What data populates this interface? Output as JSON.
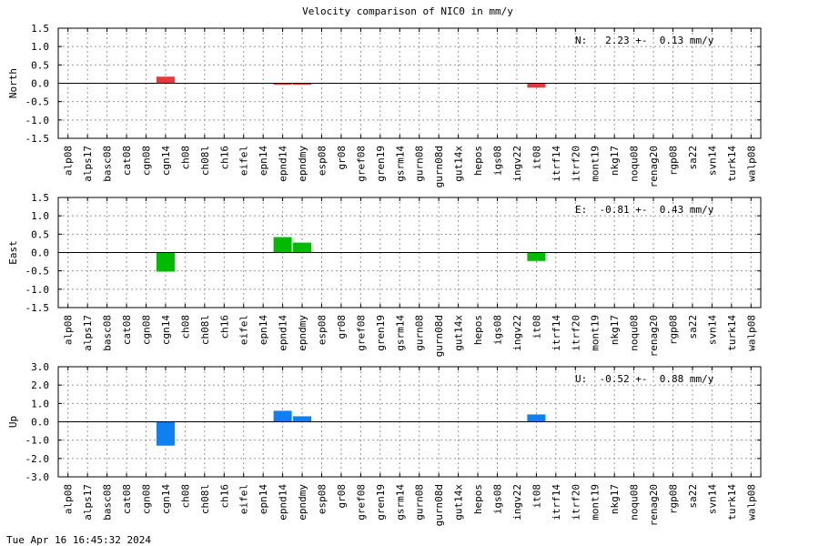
{
  "title": "Velocity comparison of NIC0 in mm/y",
  "timestamp": "Tue Apr 16 16:45:32 2024",
  "chart_data": [
    {
      "type": "bar",
      "ylabel": "North",
      "annotation": "N:   2.23 +-  0.13 mm/y",
      "ylim": [
        -1.5,
        1.5
      ],
      "yticks": [
        "1.5",
        "1.0",
        "0.5",
        "0.0",
        "-0.5",
        "-1.0",
        "-1.5"
      ],
      "color": "#e03c3c",
      "grid": true,
      "categories": [
        "alp08",
        "alps17",
        "basc08",
        "cat08",
        "cgn08",
        "cgn14",
        "ch08",
        "ch08l",
        "ch16",
        "eifel",
        "epn14",
        "epnd14",
        "epndmy",
        "esp08",
        "gr08",
        "gref08",
        "gren19",
        "gsrm14",
        "gurn08",
        "gurn08d",
        "gut14x",
        "hepos",
        "igs08",
        "ingv22",
        "it08",
        "itrf14",
        "itrf20",
        "mont19",
        "nkg17",
        "noqu08",
        "renag20",
        "rgp08",
        "sa22",
        "svn14",
        "turk14",
        "walp08"
      ],
      "values": [
        null,
        null,
        null,
        null,
        null,
        0.18,
        null,
        null,
        null,
        null,
        null,
        -0.04,
        -0.04,
        null,
        null,
        null,
        null,
        null,
        null,
        null,
        null,
        null,
        null,
        null,
        -0.12,
        null,
        null,
        null,
        null,
        null,
        null,
        null,
        null,
        null,
        null,
        null
      ]
    },
    {
      "type": "bar",
      "ylabel": "East",
      "annotation": "E:  -0.81 +-  0.43 mm/y",
      "ylim": [
        -1.5,
        1.5
      ],
      "yticks": [
        "1.5",
        "1.0",
        "0.5",
        "0.0",
        "-0.5",
        "-1.0",
        "-1.5"
      ],
      "color": "#00bb00",
      "grid": true,
      "categories": [
        "alp08",
        "alps17",
        "basc08",
        "cat08",
        "cgn08",
        "cgn14",
        "ch08",
        "ch08l",
        "ch16",
        "eifel",
        "epn14",
        "epnd14",
        "epndmy",
        "esp08",
        "gr08",
        "gref08",
        "gren19",
        "gsrm14",
        "gurn08",
        "gurn08d",
        "gut14x",
        "hepos",
        "igs08",
        "ingv22",
        "it08",
        "itrf14",
        "itrf20",
        "mont19",
        "nkg17",
        "noqu08",
        "renag20",
        "rgp08",
        "sa22",
        "svn14",
        "turk14",
        "walp08"
      ],
      "values": [
        null,
        null,
        null,
        null,
        null,
        -0.52,
        null,
        null,
        null,
        null,
        null,
        0.42,
        0.27,
        null,
        null,
        null,
        null,
        null,
        null,
        null,
        null,
        null,
        null,
        null,
        -0.23,
        null,
        null,
        null,
        null,
        null,
        null,
        null,
        null,
        null,
        null,
        null
      ]
    },
    {
      "type": "bar",
      "ylabel": "Up",
      "annotation": "U:  -0.52 +-  0.88 mm/y",
      "ylim": [
        -3.0,
        3.0
      ],
      "yticks": [
        "3.0",
        "2.0",
        "1.0",
        "0.0",
        "-1.0",
        "-2.0",
        "-3.0"
      ],
      "color": "#1080f0",
      "grid": true,
      "categories": [
        "alp08",
        "alps17",
        "basc08",
        "cat08",
        "cgn08",
        "cgn14",
        "ch08",
        "ch08l",
        "ch16",
        "eifel",
        "epn14",
        "epnd14",
        "epndmy",
        "esp08",
        "gr08",
        "gref08",
        "gren19",
        "gsrm14",
        "gurn08",
        "gurn08d",
        "gut14x",
        "hepos",
        "igs08",
        "ingv22",
        "it08",
        "itrf14",
        "itrf20",
        "mont19",
        "nkg17",
        "noqu08",
        "renag20",
        "rgp08",
        "sa22",
        "svn14",
        "turk14",
        "walp08"
      ],
      "values": [
        null,
        null,
        null,
        null,
        null,
        -1.3,
        null,
        null,
        null,
        null,
        null,
        0.6,
        0.3,
        null,
        null,
        null,
        null,
        null,
        null,
        null,
        null,
        null,
        null,
        null,
        0.4,
        null,
        null,
        null,
        null,
        null,
        null,
        null,
        null,
        null,
        null,
        null
      ]
    }
  ]
}
